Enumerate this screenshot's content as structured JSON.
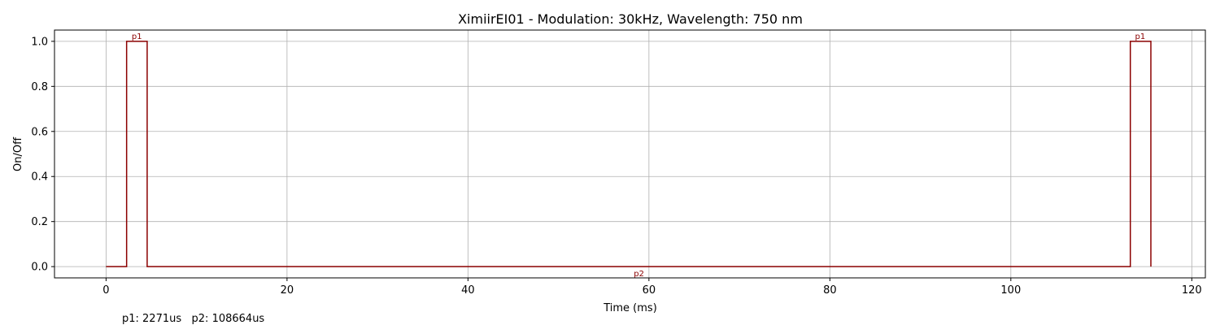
{
  "chart_data": {
    "type": "line",
    "title": "XimiirEI01 - Modulation: 30kHz, Wavelength: 750 nm",
    "xlabel": "Time (ms)",
    "ylabel": "On/Off",
    "xlim": [
      -5.7,
      121.5
    ],
    "ylim": [
      -0.05,
      1.05
    ],
    "xticks": [
      0,
      20,
      40,
      60,
      80,
      100,
      120
    ],
    "xtick_labels": [
      "0",
      "20",
      "40",
      "60",
      "80",
      "100",
      "120"
    ],
    "yticks": [
      0.0,
      0.2,
      0.4,
      0.6,
      0.8,
      1.0
    ],
    "ytick_labels": [
      "0.0",
      "0.2",
      "0.4",
      "0.6",
      "0.8",
      "1.0"
    ],
    "grid": true,
    "series": [
      {
        "color": "#8b0000",
        "step": true,
        "x": [
          0,
          2.271,
          2.271,
          4.542,
          4.542,
          113.206,
          113.206,
          115.477,
          115.477
        ],
        "y": [
          0,
          0,
          1,
          1,
          0,
          0,
          1,
          1,
          0
        ]
      }
    ],
    "annotations": [
      {
        "text": "p1",
        "x": 3.4,
        "y": 1.0
      },
      {
        "text": "p2",
        "x": 58.9,
        "y": 0.0
      },
      {
        "text": "p1",
        "x": 114.3,
        "y": 1.0
      }
    ],
    "footer": "p1: 2271us   p2: 108664us"
  }
}
